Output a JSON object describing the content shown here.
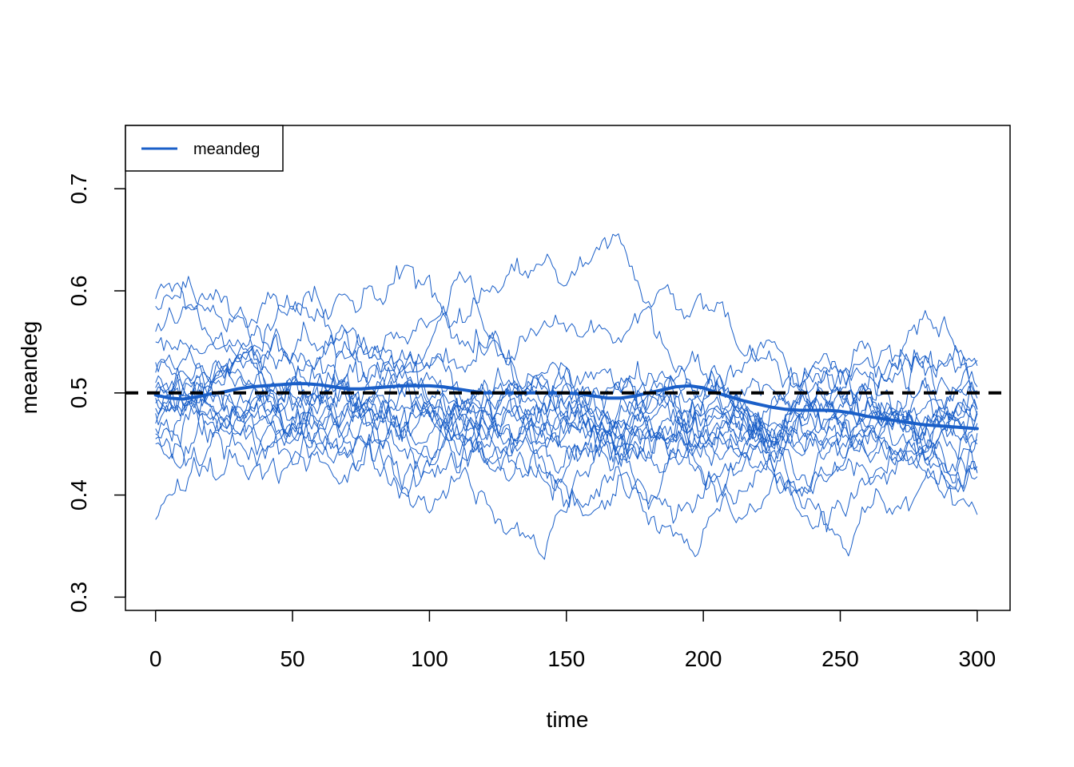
{
  "chart_data": {
    "type": "line",
    "title": "",
    "xlabel": "time",
    "ylabel": "meandeg",
    "xlim": [
      -11,
      312
    ],
    "ylim": [
      0.287,
      0.762
    ],
    "x_ticks": [
      0,
      50,
      100,
      150,
      200,
      250,
      300
    ],
    "y_ticks": [
      0.3,
      0.4,
      0.5,
      0.6,
      0.7
    ],
    "x_tick_labels": [
      "0",
      "50",
      "100",
      "150",
      "200",
      "250",
      "300"
    ],
    "y_tick_labels": [
      "0.3",
      "0.4",
      "0.5",
      "0.6",
      "0.7"
    ],
    "grid": false,
    "legend": {
      "position": "top-left",
      "entries": [
        "meandeg"
      ]
    },
    "colors": {
      "series": "#1a5fc8",
      "target": "#000000"
    },
    "target_line": {
      "y": 0.5,
      "style": "dashed"
    },
    "n_simulations": 20,
    "series": [
      {
        "name": "meandeg",
        "role": "mean of simulations",
        "x": [
          0,
          5,
          10,
          15,
          20,
          25,
          30,
          35,
          40,
          45,
          50,
          55,
          60,
          65,
          70,
          75,
          80,
          85,
          90,
          95,
          100,
          105,
          110,
          115,
          120,
          125,
          130,
          135,
          140,
          145,
          150,
          155,
          160,
          165,
          170,
          175,
          180,
          185,
          190,
          195,
          200,
          205,
          210,
          215,
          220,
          225,
          230,
          235,
          240,
          245,
          250,
          255,
          260,
          265,
          270,
          275,
          280,
          285,
          290,
          295,
          300
        ],
        "values": [
          0.498,
          0.495,
          0.494,
          0.496,
          0.499,
          0.501,
          0.504,
          0.506,
          0.507,
          0.508,
          0.509,
          0.509,
          0.508,
          0.506,
          0.504,
          0.504,
          0.505,
          0.506,
          0.507,
          0.507,
          0.507,
          0.506,
          0.504,
          0.502,
          0.5,
          0.5,
          0.5,
          0.5,
          0.5,
          0.5,
          0.5,
          0.499,
          0.497,
          0.495,
          0.495,
          0.497,
          0.5,
          0.503,
          0.506,
          0.507,
          0.505,
          0.5,
          0.496,
          0.492,
          0.489,
          0.486,
          0.484,
          0.483,
          0.483,
          0.483,
          0.482,
          0.48,
          0.477,
          0.475,
          0.473,
          0.471,
          0.469,
          0.468,
          0.467,
          0.466,
          0.465
        ]
      }
    ]
  }
}
